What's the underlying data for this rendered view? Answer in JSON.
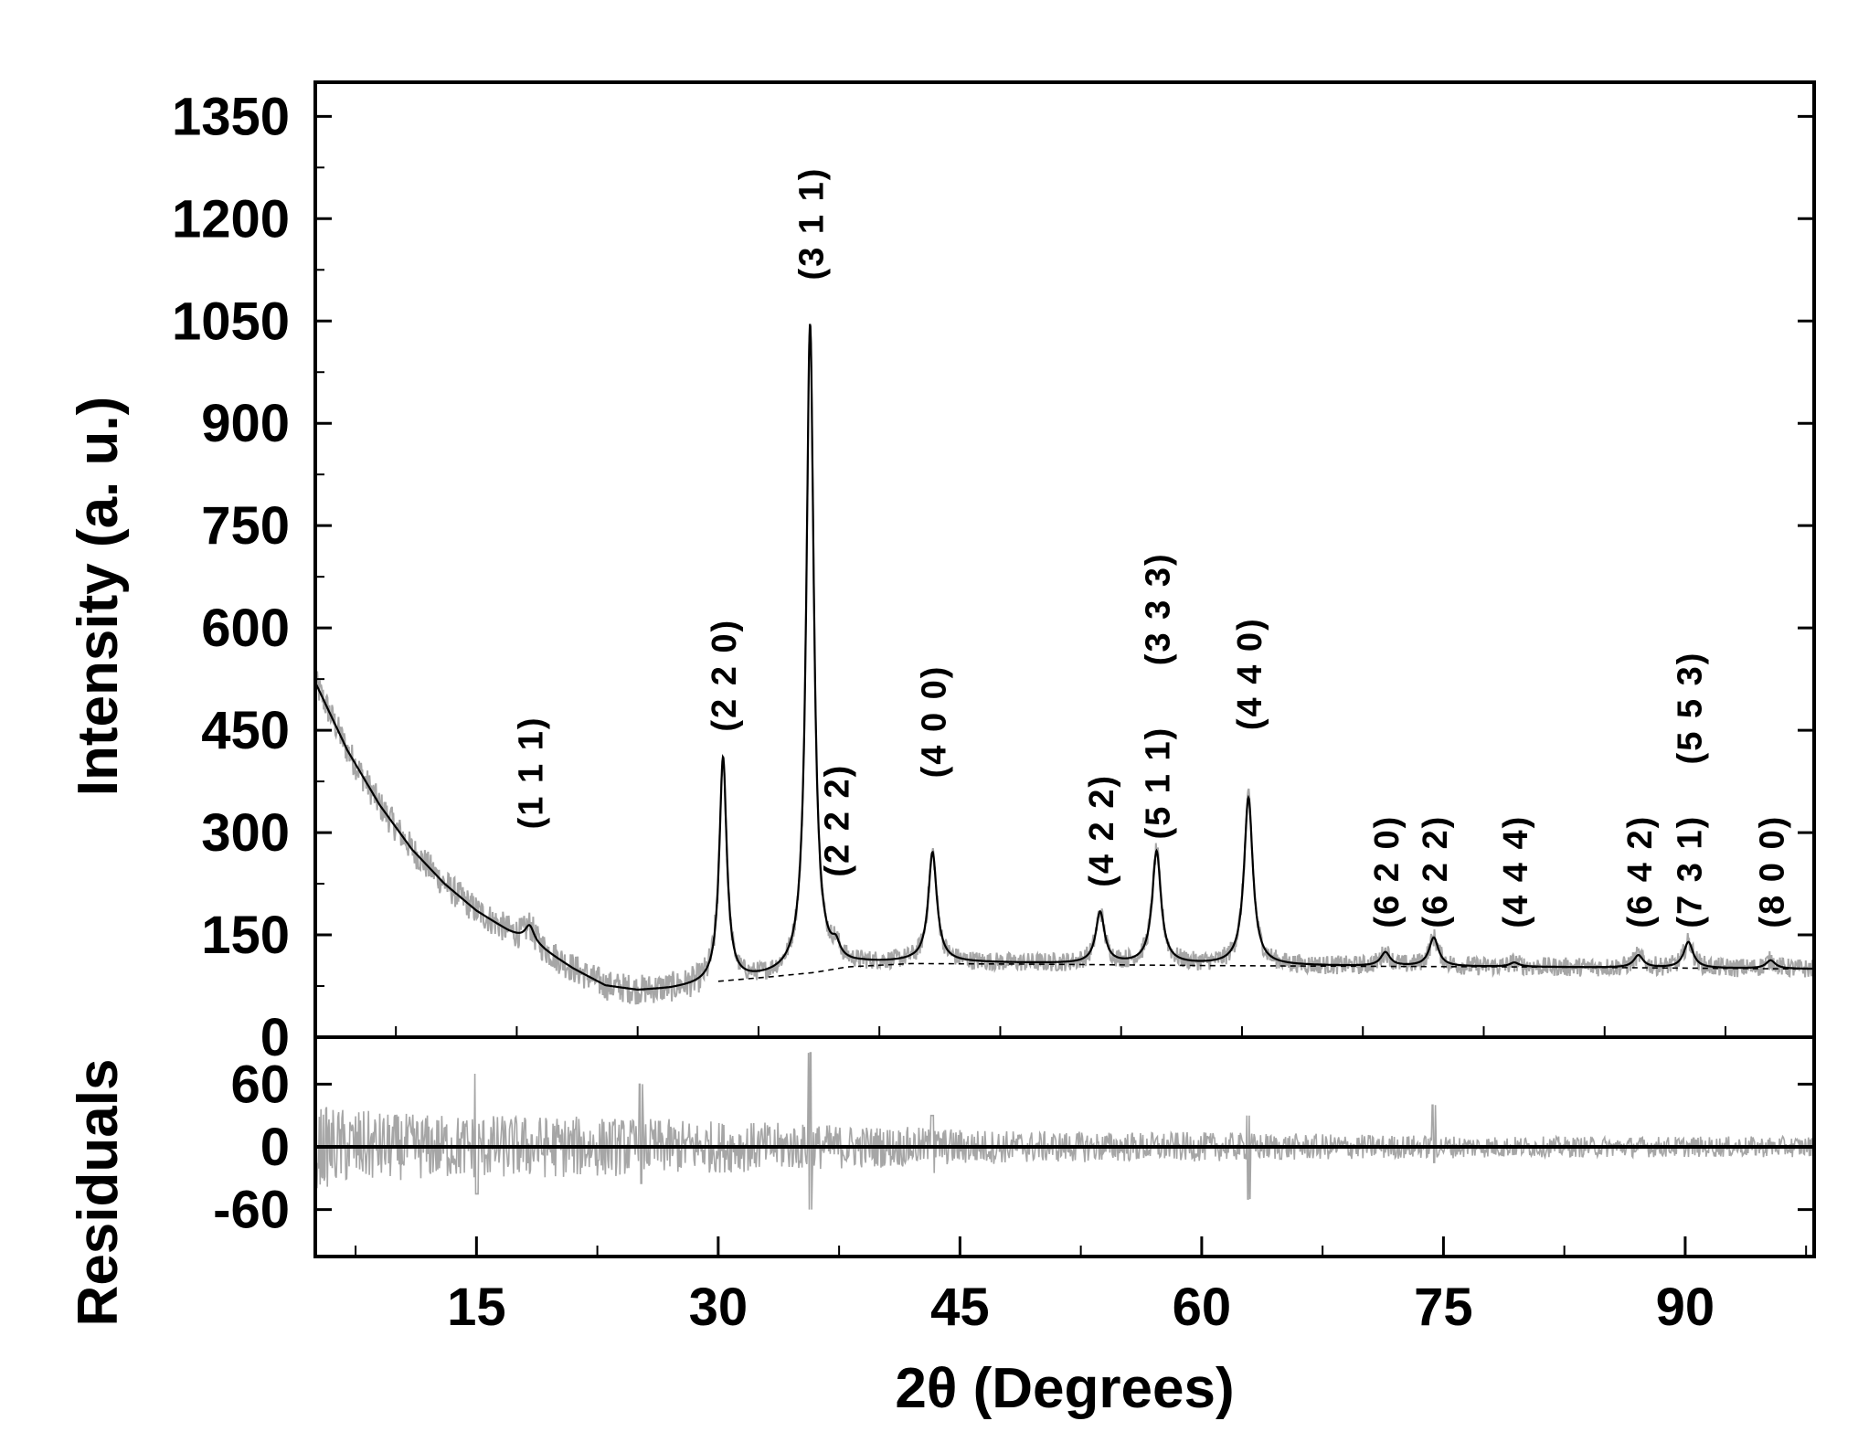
{
  "chart_data": [
    {
      "type": "line",
      "panel": "main",
      "ylabel": "Intensity (a. u.)",
      "xlim": [
        5,
        98
      ],
      "ylim": [
        0,
        1400
      ],
      "yticks": [
        0,
        150,
        300,
        450,
        600,
        750,
        900,
        1050,
        1200,
        1350
      ],
      "grid": false,
      "series": [
        {
          "role": "observed",
          "color": "#a6a6a6",
          "baseline": [
            [
              5,
              520
            ],
            [
              7,
              420
            ],
            [
              9,
              340
            ],
            [
              11,
              275
            ],
            [
              13,
              225
            ],
            [
              15,
              185
            ],
            [
              17,
              155
            ],
            [
              19,
              130
            ],
            [
              21,
              100
            ],
            [
              23,
              75
            ],
            [
              25,
              68
            ],
            [
              27,
              70
            ],
            [
              29,
              75
            ],
            [
              31,
              80
            ],
            [
              33,
              86
            ],
            [
              35,
              92
            ],
            [
              37,
              100
            ],
            [
              39,
              106
            ],
            [
              42,
              110
            ],
            [
              50,
              108
            ],
            [
              60,
              106
            ],
            [
              70,
              104
            ],
            [
              80,
              103
            ],
            [
              98,
              100
            ]
          ],
          "noise_amplitude": 14
        },
        {
          "role": "fitted",
          "color": "#000000",
          "peaks": [
            {
              "x": 18.3,
              "height": 25,
              "width": 0.35
            },
            {
              "x": 30.3,
              "height": 330,
              "width": 0.28
            },
            {
              "x": 35.7,
              "height": 950,
              "width": 0.28
            },
            {
              "x": 37.3,
              "height": 20,
              "width": 0.3
            },
            {
              "x": 43.3,
              "height": 160,
              "width": 0.32
            },
            {
              "x": 53.7,
              "height": 75,
              "width": 0.33
            },
            {
              "x": 57.2,
              "height": 165,
              "width": 0.33
            },
            {
              "x": 62.9,
              "height": 245,
              "width": 0.33
            },
            {
              "x": 71.4,
              "height": 20,
              "width": 0.35
            },
            {
              "x": 74.4,
              "height": 42,
              "width": 0.35
            },
            {
              "x": 79.4,
              "height": 6,
              "width": 0.35
            },
            {
              "x": 87.1,
              "height": 18,
              "width": 0.35
            },
            {
              "x": 90.2,
              "height": 38,
              "width": 0.35
            },
            {
              "x": 95.3,
              "height": 12,
              "width": 0.35
            }
          ]
        },
        {
          "role": "background",
          "style": "dashed",
          "color": "#000000",
          "points": [
            [
              30,
              82
            ],
            [
              33,
              88
            ],
            [
              36,
              95
            ],
            [
              38,
              103
            ],
            [
              42,
              108
            ],
            [
              50,
              107
            ],
            [
              60,
              105
            ],
            [
              70,
              104
            ],
            [
              80,
              103
            ],
            [
              98,
              100
            ]
          ]
        }
      ],
      "annotations": [
        {
          "text": "(1 1 1)",
          "x": 18.3,
          "y": 305
        },
        {
          "text": "(2 2 0)",
          "x": 30.3,
          "y": 448
        },
        {
          "text": "(3 1 1)",
          "x": 35.7,
          "y": 1110
        },
        {
          "text": "(2 2 2)",
          "x": 37.3,
          "y": 235
        },
        {
          "text": "(4 0 0)",
          "x": 43.3,
          "y": 380
        },
        {
          "text": "(4 2 2)",
          "x": 53.7,
          "y": 220
        },
        {
          "text": "(5 1 1)",
          "x": 57.2,
          "y": 290
        },
        {
          "text": "(3 3 3)",
          "x": 57.2,
          "y": 545
        },
        {
          "text": "(4 4 0)",
          "x": 62.9,
          "y": 450
        },
        {
          "text": "(6 2 0)",
          "x": 71.4,
          "y": 160
        },
        {
          "text": "(6 2 2)",
          "x": 74.4,
          "y": 160
        },
        {
          "text": "(4 4 4)",
          "x": 79.4,
          "y": 160
        },
        {
          "text": "(6 4 2)",
          "x": 87.1,
          "y": 160
        },
        {
          "text": "(7 3 1)",
          "x": 90.2,
          "y": 160
        },
        {
          "text": "(5 5 3)",
          "x": 90.2,
          "y": 400
        },
        {
          "text": "(8 0 0)",
          "x": 95.3,
          "y": 160
        }
      ]
    },
    {
      "type": "line",
      "panel": "residuals",
      "ylabel": "Residuals",
      "xlabel": "2θ (Degrees)",
      "xlim": [
        5,
        98
      ],
      "ylim": [
        -105,
        105
      ],
      "xticks": [
        15,
        30,
        45,
        60,
        75,
        90
      ],
      "yticks": [
        60,
        0,
        -60
      ],
      "grid": false,
      "series": [
        {
          "role": "residuals",
          "color": "#a6a6a6",
          "envelope": [
            [
              5,
              40
            ],
            [
              10,
              32
            ],
            [
              20,
              30
            ],
            [
              28,
              26
            ],
            [
              40,
              20
            ],
            [
              50,
              15
            ],
            [
              60,
              14
            ],
            [
              70,
              12
            ],
            [
              80,
              10
            ],
            [
              98,
              10
            ]
          ],
          "spikes": [
            [
              35.7,
              90,
              -60
            ],
            [
              15.0,
              70,
              -45
            ],
            [
              25.2,
              60,
              -35
            ],
            [
              62.9,
              30,
              -50
            ],
            [
              74.4,
              40,
              -15
            ],
            [
              43.3,
              30,
              -25
            ]
          ]
        },
        {
          "role": "zero-line",
          "color": "#000000",
          "value": 0
        }
      ]
    }
  ]
}
